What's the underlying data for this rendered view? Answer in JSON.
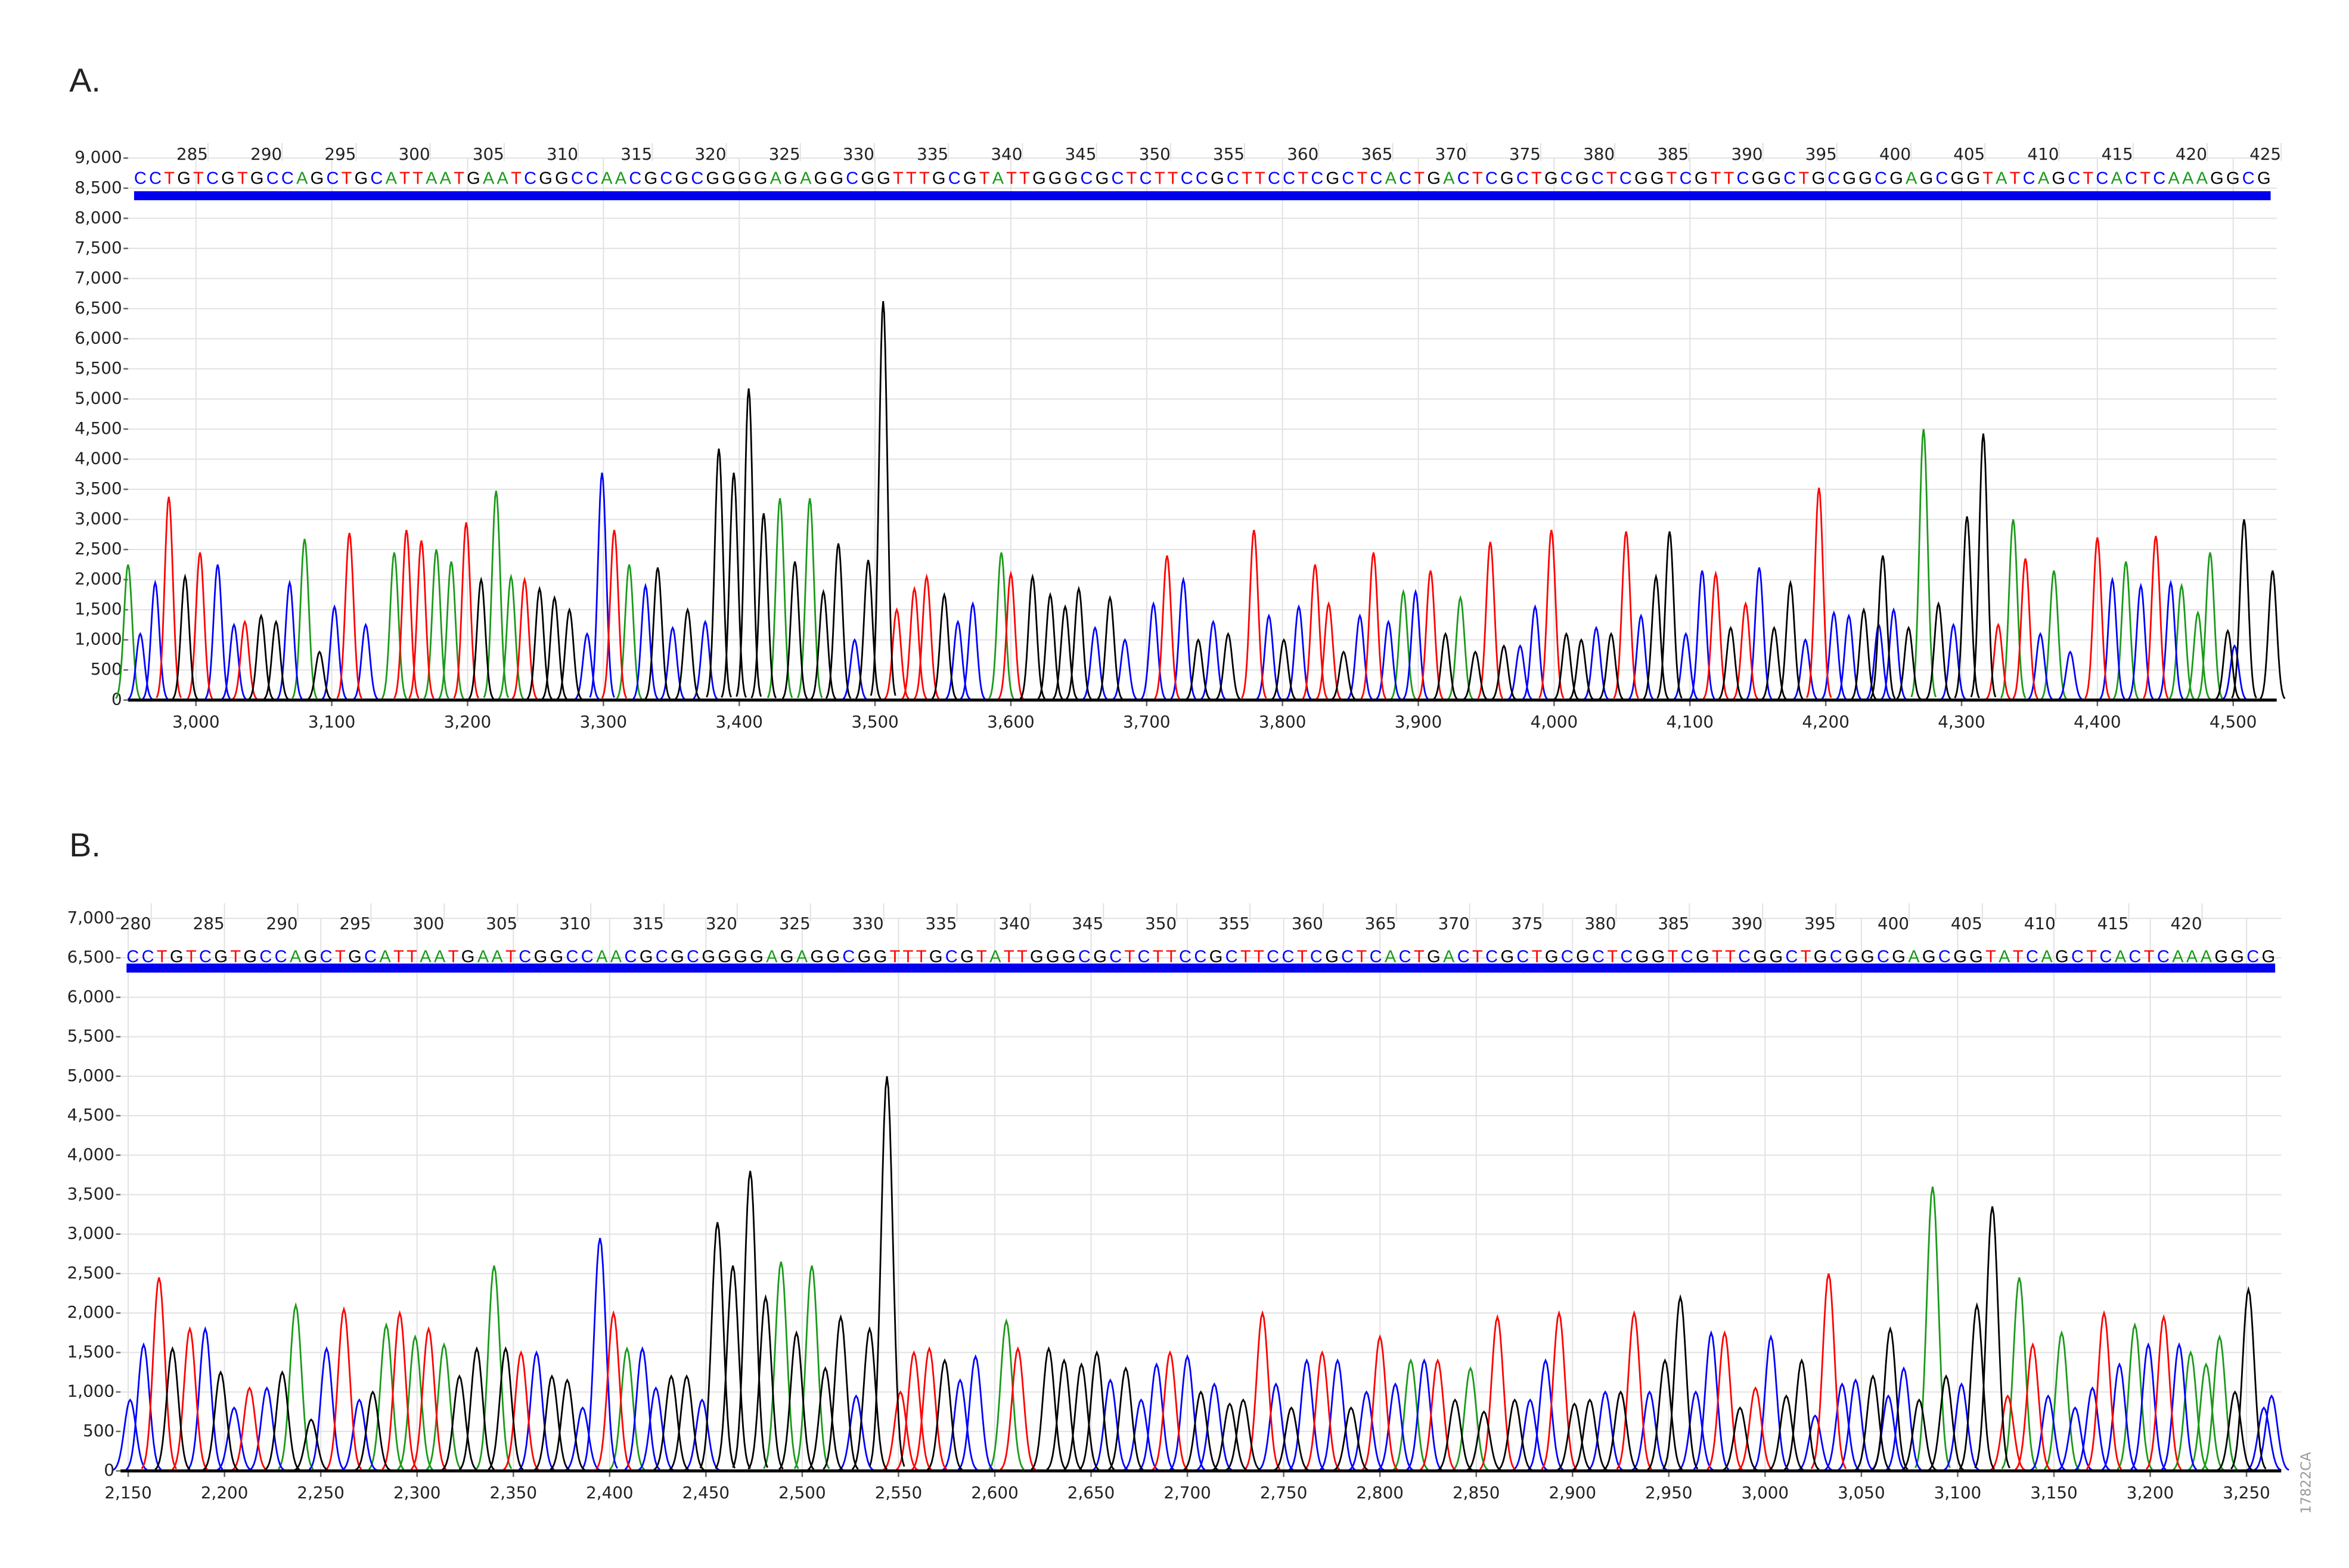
{
  "figure_id": "17822CA",
  "chart_data": [
    {
      "type": "chromatogram",
      "panel_label": "A.",
      "xlim": [
        2950,
        4532
      ],
      "ylim": [
        0,
        9000
      ],
      "x2lim": [
        279.6,
        424.7
      ],
      "grid": true,
      "xticks": [
        {
          "value": 3000,
          "label": "3,000"
        },
        {
          "value": 3100,
          "label": "3,100"
        },
        {
          "value": 3200,
          "label": "3,200"
        },
        {
          "value": 3300,
          "label": "3,300"
        },
        {
          "value": 3400,
          "label": "3,400"
        },
        {
          "value": 3500,
          "label": "3,500"
        },
        {
          "value": 3600,
          "label": "3,600"
        },
        {
          "value": 3700,
          "label": "3,700"
        },
        {
          "value": 3800,
          "label": "3,800"
        },
        {
          "value": 3900,
          "label": "3,900"
        },
        {
          "value": 4000,
          "label": "4,000"
        },
        {
          "value": 4100,
          "label": "4,100"
        },
        {
          "value": 4200,
          "label": "4,200"
        },
        {
          "value": 4300,
          "label": "4,300"
        },
        {
          "value": 4400,
          "label": "4,400"
        },
        {
          "value": 4500,
          "label": "4,500"
        }
      ],
      "yticks": [
        0,
        500,
        {
          "value": 1000,
          "label": "1,000"
        },
        {
          "value": 1500,
          "label": "1,500"
        },
        {
          "value": 2000,
          "label": "2,000"
        },
        {
          "value": 2500,
          "label": "2,500"
        },
        {
          "value": 3000,
          "label": "3,000"
        },
        {
          "value": 3500,
          "label": "3,500"
        },
        {
          "value": 4000,
          "label": "4,000"
        },
        {
          "value": 4500,
          "label": "4,500"
        },
        {
          "value": 5000,
          "label": "5,000"
        },
        {
          "value": 5500,
          "label": "5,500"
        },
        {
          "value": 6000,
          "label": "6,000"
        },
        {
          "value": 6500,
          "label": "6,500"
        },
        {
          "value": 7000,
          "label": "7,000"
        },
        {
          "value": 7500,
          "label": "7,500"
        },
        {
          "value": 8000,
          "label": "8,000"
        },
        {
          "value": 8500,
          "label": "8,500"
        },
        {
          "value": 9000,
          "label": "9,000"
        }
      ],
      "x2ticks": [
        285,
        290,
        295,
        300,
        305,
        310,
        315,
        320,
        325,
        330,
        335,
        340,
        345,
        350,
        355,
        360,
        365,
        370,
        375,
        380,
        385,
        390,
        395,
        400,
        405,
        410,
        415,
        420,
        425
      ],
      "sequence": "CCTGTCGTGCCAGCTGCATTAATGAATCGGCCAACGCGCGGGGAGAGGCGGTTTGCGTATTGGGCGCTCTTCCGCTTCCTCGCTCACTGACTCGCTGCGCTCGGTCGTTCGGCTGCGGCGAGCGGTATCAGCTCACTCAAAGGCG",
      "base_colors": {
        "A": "#1a9a1a",
        "C": "#0000ff",
        "G": "#000000",
        "T": "#ff0000"
      },
      "series": [
        {
          "color": "#1a9a1a",
          "x": [
            2950,
            3080,
            3146,
            3177,
            3188,
            3221,
            3232,
            3319,
            3430,
            3452,
            3593,
            3889,
            3931,
            4272,
            4338,
            4368,
            4421,
            4462,
            4474,
            4483
          ],
          "values": [
            2250,
            2675,
            2450,
            2500,
            2300,
            3475,
            2050,
            2250,
            3350,
            3350,
            2450,
            1800,
            1700,
            4500,
            3000,
            2150,
            2300,
            1900,
            1450,
            2450
          ]
        },
        {
          "color": "#0000ff",
          "x": [
            2959,
            2970,
            3016,
            3028,
            3069,
            3102,
            3125,
            3288,
            3299,
            3331,
            3351,
            3375,
            3485,
            3561,
            3572,
            3662,
            3684,
            3705,
            3727,
            3749,
            3790,
            3812,
            3857,
            3878,
            3898,
            3975,
            3986,
            4031,
            4064,
            4097,
            4109,
            4151,
            4185,
            4206,
            4217,
            4239,
            4250,
            4294,
            4358,
            4380,
            4411,
            4432,
            4454,
            4501
          ],
          "values": [
            1100,
            1950,
            2250,
            1250,
            1950,
            1550,
            1250,
            1100,
            3775,
            1900,
            1200,
            1300,
            1000,
            1300,
            1600,
            1200,
            1000,
            1600,
            2000,
            1300,
            1400,
            1550,
            1400,
            1300,
            1800,
            900,
            1550,
            1200,
            1400,
            1100,
            2150,
            2200,
            1000,
            1450,
            1400,
            1250,
            1500,
            1250,
            1100,
            800,
            2000,
            1900,
            1950,
            900
          ]
        },
        {
          "color": "#ff0000",
          "x": [
            2980,
            3003,
            3036,
            3113,
            3155,
            3166,
            3199,
            3242,
            3308,
            3516,
            3529,
            3538,
            3600,
            3715,
            3779,
            3824,
            3834,
            3867,
            3909,
            3953,
            3998,
            4053,
            4119,
            4141,
            4195,
            4327,
            4347,
            4400,
            4443
          ],
          "values": [
            3375,
            2450,
            1300,
            2775,
            2825,
            2650,
            2950,
            2000,
            2825,
            1500,
            1850,
            2050,
            2100,
            2400,
            2825,
            2250,
            1600,
            2450,
            2150,
            2625,
            2825,
            2800,
            2100,
            1600,
            3525,
            1250,
            2350,
            2700,
            2725
          ]
        },
        {
          "color": "#000000",
          "x": [
            2992,
            3048,
            3059,
            3091,
            3210,
            3253,
            3264,
            3275,
            3340,
            3362,
            3385,
            3396,
            3407,
            3418,
            3441,
            3462,
            3473,
            3495,
            3506,
            3551,
            3616,
            3629,
            3640,
            3650,
            3673,
            3738,
            3760,
            3801,
            3845,
            3920,
            3942,
            3963,
            4009,
            4020,
            4042,
            4075,
            4085,
            4130,
            4162,
            4174,
            4228,
            4242,
            4261,
            4283,
            4304,
            4316,
            4496,
            4508,
            4529
          ],
          "values": [
            2050,
            1400,
            1300,
            800,
            2000,
            1850,
            1700,
            1500,
            2200,
            1500,
            4175,
            3775,
            5175,
            3100,
            2300,
            1800,
            2600,
            2325,
            6625,
            1750,
            2050,
            1750,
            1550,
            1850,
            1700,
            1000,
            1100,
            1000,
            800,
            1100,
            800,
            900,
            1100,
            1000,
            1100,
            2050,
            2800,
            1200,
            1200,
            1950,
            1500,
            2400,
            1200,
            1600,
            3050,
            4425,
            1150,
            3000,
            2150
          ]
        }
      ]
    },
    {
      "type": "chromatogram",
      "panel_label": "B.",
      "xlim": [
        2146,
        3268
      ],
      "ylim": [
        0,
        7000
      ],
      "x2lim": [
        277.9,
        425.4
      ],
      "grid": true,
      "xticks": [
        {
          "value": 2150,
          "label": "2,150"
        },
        {
          "value": 2200,
          "label": "2,200"
        },
        {
          "value": 2250,
          "label": "2,250"
        },
        {
          "value": 2300,
          "label": "2,300"
        },
        {
          "value": 2350,
          "label": "2,350"
        },
        {
          "value": 2400,
          "label": "2,400"
        },
        {
          "value": 2450,
          "label": "2,450"
        },
        {
          "value": 2500,
          "label": "2,500"
        },
        {
          "value": 2550,
          "label": "2,550"
        },
        {
          "value": 2600,
          "label": "2,600"
        },
        {
          "value": 2650,
          "label": "2,650"
        },
        {
          "value": 2700,
          "label": "2,700"
        },
        {
          "value": 2750,
          "label": "2,750"
        },
        {
          "value": 2800,
          "label": "2,800"
        },
        {
          "value": 2850,
          "label": "2,850"
        },
        {
          "value": 2900,
          "label": "2,900"
        },
        {
          "value": 2950,
          "label": "2,950"
        },
        {
          "value": 3000,
          "label": "3,000"
        },
        {
          "value": 3050,
          "label": "3,050"
        },
        {
          "value": 3100,
          "label": "3,100"
        },
        {
          "value": 3150,
          "label": "3,150"
        },
        {
          "value": 3200,
          "label": "3,200"
        },
        {
          "value": 3250,
          "label": "3,250"
        }
      ],
      "yticks": [
        0,
        500,
        {
          "value": 1000,
          "label": "1,000"
        },
        {
          "value": 1500,
          "label": "1,500"
        },
        {
          "value": 2000,
          "label": "2,000"
        },
        {
          "value": 2500,
          "label": "2,500"
        },
        {
          "value": 3000,
          "label": "3,000"
        },
        {
          "value": 3500,
          "label": "3,500"
        },
        {
          "value": 4000,
          "label": "4,000"
        },
        {
          "value": 4500,
          "label": "4,500"
        },
        {
          "value": 5000,
          "label": "5,000"
        },
        {
          "value": 5500,
          "label": "5,500"
        },
        {
          "value": 6000,
          "label": "6,000"
        },
        {
          "value": 6500,
          "label": "6,500"
        },
        {
          "value": 7000,
          "label": "7,000"
        }
      ],
      "x2ticks": [
        280,
        285,
        290,
        295,
        300,
        305,
        310,
        315,
        320,
        325,
        330,
        335,
        340,
        345,
        350,
        355,
        360,
        365,
        370,
        375,
        380,
        385,
        390,
        395,
        400,
        405,
        410,
        415,
        420
      ],
      "sequence": "CCTGTCGTGCCAGCTGCATTAATGAATCGGCCAACGCGCGGGGAGAGGCGGTTTGCGTATTGGGCGCTCTTCCGCTTCCTCGCTCACTGACTCGCTGCGCTCGGTCGTTCGGCTGCGGCGAGCGGTATCAGCTCACTCAAAGGCG",
      "base_colors": {
        "A": "#1a9a1a",
        "C": "#0000ff",
        "G": "#000000",
        "T": "#ff0000"
      },
      "series": [
        {
          "color": "#1a9a1a",
          "x": [
            2237,
            2284,
            2299,
            2314,
            2340,
            2409,
            2489,
            2505,
            2606,
            2816,
            2847,
            3087,
            3132,
            3154,
            3192,
            3221,
            3229,
            3236
          ],
          "values": [
            2100,
            1850,
            1700,
            1600,
            2600,
            1550,
            2650,
            2600,
            1900,
            1400,
            1300,
            3600,
            2450,
            1750,
            1850,
            1500,
            1350,
            1700
          ]
        },
        {
          "color": "#0000ff",
          "x": [
            2151,
            2158,
            2190,
            2205,
            2222,
            2253,
            2270,
            2362,
            2386,
            2395,
            2417,
            2424,
            2448,
            2528,
            2582,
            2590,
            2660,
            2676,
            2684,
            2700,
            2714,
            2746,
            2762,
            2778,
            2793,
            2808,
            2823,
            2878,
            2886,
            2917,
            2940,
            2964,
            2972,
            3003,
            3026,
            3040,
            3047,
            3064,
            3072,
            3102,
            3147,
            3161,
            3170,
            3184,
            3199,
            3215,
            3259,
            3263
          ],
          "values": [
            900,
            1600,
            1800,
            800,
            1050,
            1550,
            900,
            1500,
            800,
            2950,
            1550,
            1050,
            900,
            950,
            1150,
            1450,
            1150,
            900,
            1350,
            1450,
            1100,
            1100,
            1400,
            1400,
            1000,
            1100,
            1400,
            900,
            1400,
            1000,
            1000,
            1000,
            1750,
            1700,
            700,
            1100,
            1150,
            950,
            1300,
            1100,
            950,
            800,
            1050,
            1350,
            1600,
            1600,
            800,
            950
          ]
        },
        {
          "color": "#ff0000",
          "x": [
            2166,
            2182,
            2213,
            2262,
            2291,
            2306,
            2354,
            2402,
            2551,
            2558,
            2566,
            2612,
            2691,
            2739,
            2770,
            2800,
            2830,
            2861,
            2893,
            2932,
            2979,
            2995,
            3033,
            3126,
            3139,
            3176,
            3207
          ],
          "values": [
            2450,
            1800,
            1050,
            2050,
            2000,
            1800,
            1500,
            2000,
            1000,
            1500,
            1550,
            1550,
            1500,
            2000,
            1500,
            1700,
            1400,
            1950,
            2000,
            2000,
            1750,
            1050,
            2500,
            950,
            1600,
            2000,
            1950
          ]
        },
        {
          "color": "#000000",
          "x": [
            2173,
            2198,
            2230,
            2245,
            2277,
            2322,
            2331,
            2346,
            2370,
            2378,
            2432,
            2440,
            2456,
            2464,
            2473,
            2481,
            2497,
            2512,
            2520,
            2535,
            2544,
            2574,
            2628,
            2636,
            2645,
            2653,
            2668,
            2707,
            2722,
            2729,
            2754,
            2785,
            2839,
            2854,
            2870,
            2901,
            2909,
            2925,
            2948,
            2956,
            2987,
            3011,
            3019,
            3056,
            3065,
            3080,
            3094,
            3110,
            3118,
            3244,
            3251
          ],
          "values": [
            1550,
            1250,
            1250,
            650,
            1000,
            1200,
            1550,
            1550,
            1200,
            1150,
            1200,
            1200,
            3150,
            2600,
            3800,
            2200,
            1750,
            1300,
            1950,
            1800,
            5000,
            1400,
            1550,
            1400,
            1350,
            1500,
            1300,
            1000,
            850,
            900,
            800,
            800,
            900,
            750,
            900,
            850,
            900,
            1000,
            1400,
            2200,
            800,
            950,
            1400,
            1200,
            1800,
            900,
            1200,
            2100,
            3350,
            1000,
            2300
          ]
        }
      ]
    }
  ]
}
